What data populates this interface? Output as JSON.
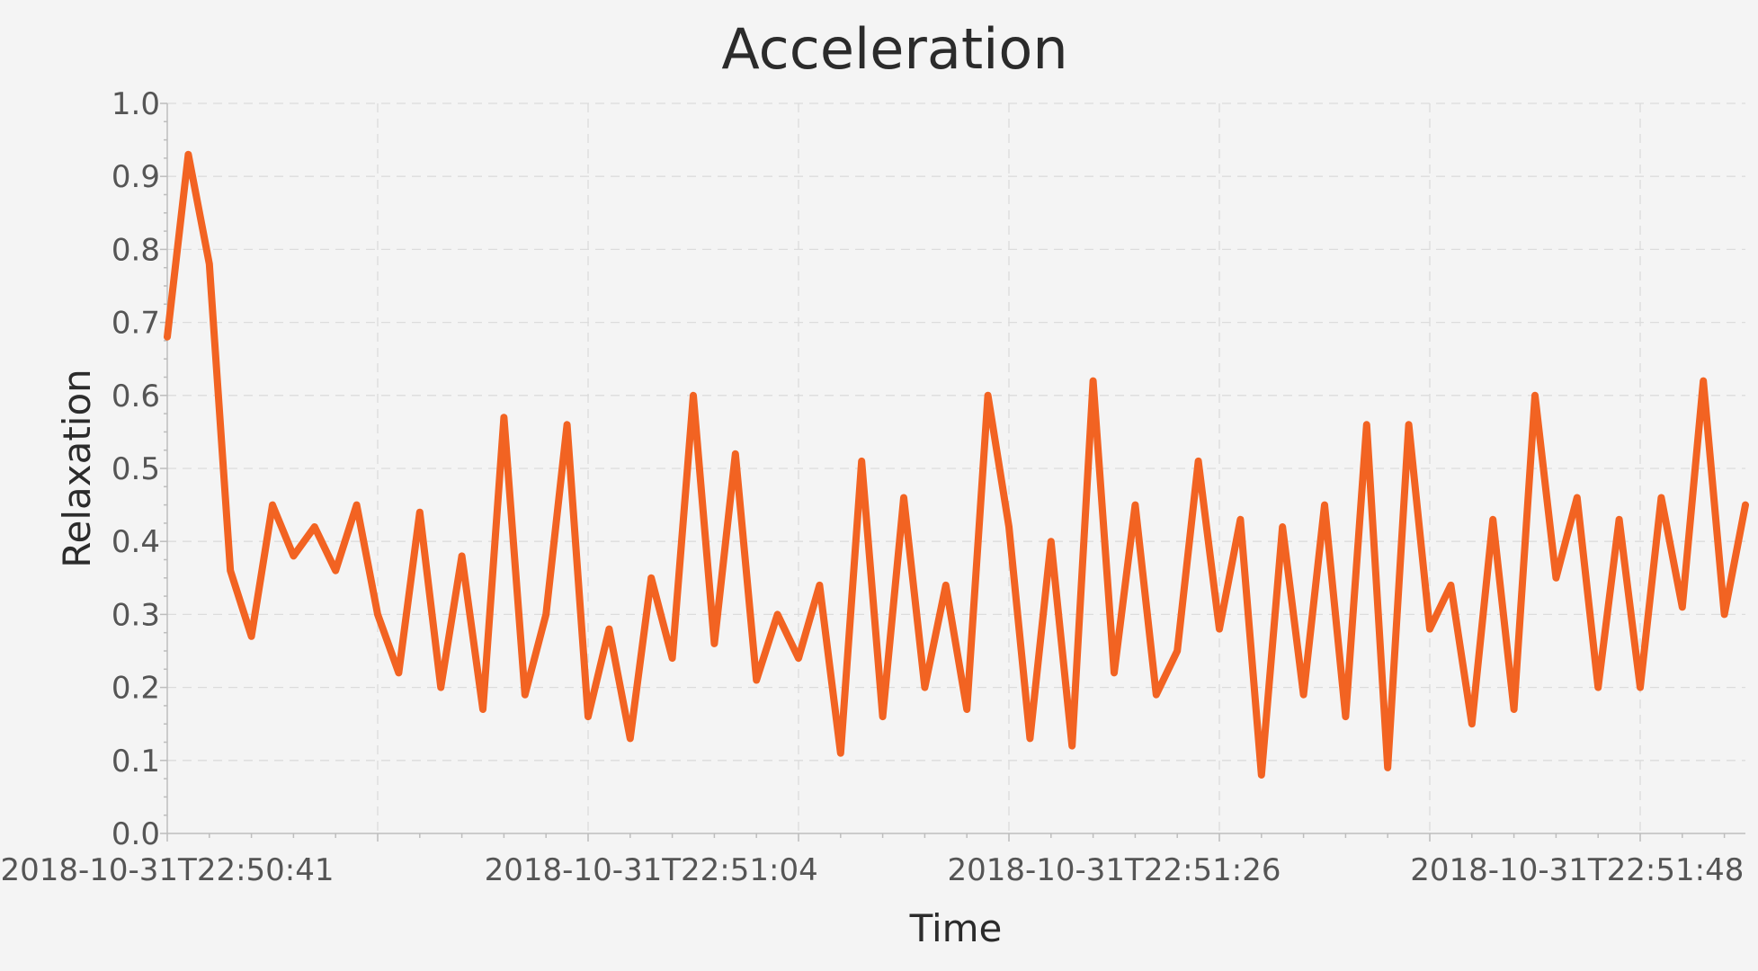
{
  "chart_data": {
    "type": "line",
    "title": "Acceleration",
    "xlabel": "Time",
    "ylabel": "Relaxation",
    "ylim": [
      0,
      1
    ],
    "xlim": [
      "2018-10-31T22:50:41",
      "2018-10-31T22:51:56"
    ],
    "grid": true,
    "y_ticks": [
      "0.0",
      "0.1",
      "0.2",
      "0.3",
      "0.4",
      "0.5",
      "0.6",
      "0.7",
      "0.8",
      "0.9",
      "1.0"
    ],
    "x_tick_labels": [
      "2018-10-31T22:50:41",
      "2018-10-31T22:51:04",
      "2018-10-31T22:51:26",
      "2018-10-31T22:51:48"
    ],
    "series": [
      {
        "color": "#f26322",
        "x": [
          "2018-10-31T22:50:41",
          "2018-10-31T22:50:42",
          "2018-10-31T22:50:43",
          "2018-10-31T22:50:44",
          "2018-10-31T22:50:45",
          "2018-10-31T22:50:46",
          "2018-10-31T22:50:47",
          "2018-10-31T22:50:48",
          "2018-10-31T22:50:49",
          "2018-10-31T22:50:50",
          "2018-10-31T22:50:51",
          "2018-10-31T22:50:52",
          "2018-10-31T22:50:53",
          "2018-10-31T22:50:54",
          "2018-10-31T22:50:55",
          "2018-10-31T22:50:56",
          "2018-10-31T22:50:57",
          "2018-10-31T22:50:58",
          "2018-10-31T22:50:59",
          "2018-10-31T22:51:00",
          "2018-10-31T22:51:01",
          "2018-10-31T22:51:02",
          "2018-10-31T22:51:03",
          "2018-10-31T22:51:04",
          "2018-10-31T22:51:05",
          "2018-10-31T22:51:06",
          "2018-10-31T22:51:07",
          "2018-10-31T22:51:08",
          "2018-10-31T22:51:09",
          "2018-10-31T22:51:10",
          "2018-10-31T22:51:11",
          "2018-10-31T22:51:12",
          "2018-10-31T22:51:13",
          "2018-10-31T22:51:14",
          "2018-10-31T22:51:15",
          "2018-10-31T22:51:16",
          "2018-10-31T22:51:17",
          "2018-10-31T22:51:18",
          "2018-10-31T22:51:19",
          "2018-10-31T22:51:20",
          "2018-10-31T22:51:21",
          "2018-10-31T22:51:22",
          "2018-10-31T22:51:23",
          "2018-10-31T22:51:24",
          "2018-10-31T22:51:25",
          "2018-10-31T22:51:26",
          "2018-10-31T22:51:27",
          "2018-10-31T22:51:28",
          "2018-10-31T22:51:29",
          "2018-10-31T22:51:30",
          "2018-10-31T22:51:31",
          "2018-10-31T22:51:32",
          "2018-10-31T22:51:33",
          "2018-10-31T22:51:34",
          "2018-10-31T22:51:35",
          "2018-10-31T22:51:36",
          "2018-10-31T22:51:37",
          "2018-10-31T22:51:38",
          "2018-10-31T22:51:39",
          "2018-10-31T22:51:40",
          "2018-10-31T22:51:41",
          "2018-10-31T22:51:42",
          "2018-10-31T22:51:43",
          "2018-10-31T22:51:44",
          "2018-10-31T22:51:45",
          "2018-10-31T22:51:46",
          "2018-10-31T22:51:47",
          "2018-10-31T22:51:48",
          "2018-10-31T22:51:49",
          "2018-10-31T22:51:50",
          "2018-10-31T22:51:51",
          "2018-10-31T22:51:52",
          "2018-10-31T22:51:53",
          "2018-10-31T22:51:54",
          "2018-10-31T22:51:55",
          "2018-10-31T22:51:56"
        ],
        "values": [
          0.68,
          0.93,
          0.78,
          0.36,
          0.27,
          0.45,
          0.38,
          0.42,
          0.36,
          0.45,
          0.3,
          0.22,
          0.44,
          0.2,
          0.38,
          0.17,
          0.57,
          0.19,
          0.3,
          0.56,
          0.16,
          0.28,
          0.13,
          0.35,
          0.24,
          0.6,
          0.26,
          0.52,
          0.21,
          0.3,
          0.24,
          0.34,
          0.11,
          0.51,
          0.16,
          0.46,
          0.2,
          0.34,
          0.17,
          0.6,
          0.42,
          0.13,
          0.4,
          0.12,
          0.62,
          0.22,
          0.45,
          0.19,
          0.25,
          0.51,
          0.28,
          0.43,
          0.08,
          0.42,
          0.19,
          0.45,
          0.16,
          0.56,
          0.09,
          0.56,
          0.28,
          0.34,
          0.15,
          0.43,
          0.17,
          0.6,
          0.35,
          0.46,
          0.2,
          0.43,
          0.2,
          0.46,
          0.31,
          0.62,
          0.3,
          0.45
        ]
      }
    ]
  }
}
